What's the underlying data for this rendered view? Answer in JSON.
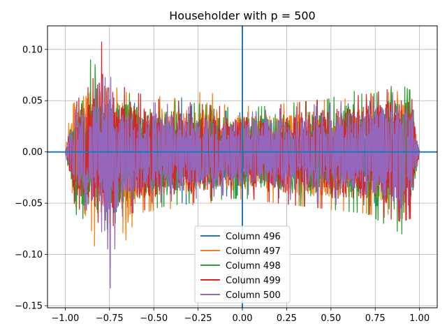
{
  "chart_data": {
    "type": "line",
    "title": "Householder with p = 500",
    "xlabel": "",
    "ylabel": "",
    "xlim": [
      -1.1,
      1.1
    ],
    "ylim": [
      -0.152,
      0.123
    ],
    "grid": true,
    "legend_position": "lower center",
    "xticks": [
      -1.0,
      -0.75,
      -0.5,
      -0.25,
      0.0,
      0.25,
      0.5,
      0.75,
      1.0
    ],
    "xtick_labels": [
      "−1.00",
      "−0.75",
      "−0.50",
      "−0.25",
      "0.00",
      "0.25",
      "0.50",
      "0.75",
      "1.00"
    ],
    "yticks": [
      -0.15,
      -0.1,
      -0.05,
      0.0,
      0.05,
      0.1
    ],
    "ytick_labels": [
      "−0.15",
      "−0.10",
      "−0.05",
      "0.00",
      "0.05",
      "0.10"
    ],
    "reference_lines": [
      {
        "orientation": "horizontal",
        "value": 0.0,
        "color": "#1f77b4"
      },
      {
        "orientation": "vertical",
        "value": 0.0,
        "color": "#1f77b4"
      }
    ],
    "series": [
      {
        "name": "Column 496",
        "color": "#1f77b4",
        "x": [
          -1.0,
          -0.95,
          -0.9,
          -0.85,
          -0.8,
          -0.75,
          -0.7,
          -0.65,
          -0.6,
          -0.5,
          -0.4,
          -0.3,
          -0.2,
          -0.1,
          0.0,
          0.1,
          0.2,
          0.3,
          0.4,
          0.5,
          0.6,
          0.7,
          0.75,
          0.8,
          0.85,
          0.9,
          0.95,
          1.0
        ],
        "envelope_upper": [
          0.0,
          0.034,
          0.047,
          0.05,
          0.053,
          0.055,
          0.052,
          0.05,
          0.047,
          0.045,
          0.042,
          0.061,
          0.043,
          0.04,
          0.038,
          0.04,
          0.042,
          0.043,
          0.044,
          0.046,
          0.047,
          0.049,
          0.05,
          0.048,
          0.05,
          0.053,
          0.05,
          0.0
        ],
        "envelope_lower": [
          0.0,
          -0.045,
          -0.05,
          -0.052,
          -0.055,
          -0.06,
          -0.058,
          -0.054,
          -0.05,
          -0.048,
          -0.046,
          -0.052,
          -0.045,
          -0.043,
          -0.042,
          -0.043,
          -0.045,
          -0.046,
          -0.047,
          -0.048,
          -0.05,
          -0.052,
          -0.053,
          -0.05,
          -0.052,
          -0.055,
          -0.05,
          0.0
        ]
      },
      {
        "name": "Column 497",
        "color": "#ff7f0e",
        "x": [
          -1.0,
          -0.95,
          -0.9,
          -0.85,
          -0.8,
          -0.75,
          -0.7,
          -0.65,
          -0.6,
          -0.5,
          -0.4,
          -0.3,
          -0.2,
          -0.1,
          0.0,
          0.1,
          0.2,
          0.3,
          0.4,
          0.5,
          0.6,
          0.7,
          0.75,
          0.8,
          0.85,
          0.9,
          0.95,
          1.0
        ],
        "envelope_upper": [
          0.0,
          0.07,
          0.07,
          0.075,
          0.103,
          0.065,
          0.062,
          0.058,
          0.056,
          0.055,
          0.052,
          0.052,
          0.062,
          0.046,
          0.044,
          0.046,
          0.047,
          0.048,
          0.05,
          0.051,
          0.052,
          0.054,
          0.055,
          0.056,
          0.06,
          0.058,
          0.055,
          0.0
        ],
        "envelope_lower": [
          0.0,
          -0.07,
          -0.075,
          -0.097,
          -0.08,
          -0.07,
          -0.068,
          -0.089,
          -0.06,
          -0.057,
          -0.055,
          -0.052,
          -0.05,
          -0.048,
          -0.046,
          -0.048,
          -0.05,
          -0.052,
          -0.054,
          -0.056,
          -0.058,
          -0.06,
          -0.062,
          -0.06,
          -0.062,
          -0.065,
          -0.06,
          0.0
        ]
      },
      {
        "name": "Column 498",
        "color": "#2ca02c",
        "x": [
          -1.0,
          -0.95,
          -0.9,
          -0.85,
          -0.8,
          -0.75,
          -0.7,
          -0.65,
          -0.6,
          -0.5,
          -0.4,
          -0.3,
          -0.2,
          -0.1,
          0.0,
          0.1,
          0.2,
          0.3,
          0.4,
          0.5,
          0.6,
          0.7,
          0.75,
          0.8,
          0.85,
          0.9,
          0.95,
          1.0
        ],
        "envelope_upper": [
          0.0,
          0.05,
          0.065,
          0.094,
          0.07,
          0.065,
          0.06,
          0.058,
          0.055,
          0.052,
          0.05,
          0.048,
          0.046,
          0.044,
          0.042,
          0.044,
          0.046,
          0.048,
          0.05,
          0.052,
          0.061,
          0.055,
          0.057,
          0.06,
          0.065,
          0.065,
          0.06,
          0.0
        ],
        "envelope_lower": [
          0.0,
          -0.06,
          -0.065,
          -0.07,
          -0.085,
          -0.072,
          -0.068,
          -0.062,
          -0.058,
          -0.055,
          -0.052,
          -0.05,
          -0.048,
          -0.046,
          -0.045,
          -0.047,
          -0.05,
          -0.052,
          -0.054,
          -0.056,
          -0.058,
          -0.06,
          -0.065,
          -0.07,
          -0.075,
          -0.08,
          -0.07,
          0.0
        ]
      },
      {
        "name": "Column 499",
        "color": "#d62728",
        "x": [
          -1.0,
          -0.95,
          -0.9,
          -0.85,
          -0.8,
          -0.75,
          -0.7,
          -0.65,
          -0.6,
          -0.5,
          -0.4,
          -0.3,
          -0.2,
          -0.1,
          0.0,
          0.1,
          0.2,
          0.3,
          0.4,
          0.5,
          0.6,
          0.7,
          0.75,
          0.8,
          0.85,
          0.9,
          0.95,
          1.0
        ],
        "envelope_upper": [
          0.0,
          0.044,
          0.06,
          0.065,
          0.111,
          0.078,
          0.065,
          0.062,
          0.058,
          0.052,
          0.05,
          0.048,
          0.046,
          0.044,
          0.042,
          0.044,
          0.046,
          0.048,
          0.05,
          0.052,
          0.054,
          0.056,
          0.058,
          0.06,
          0.062,
          0.064,
          0.06,
          0.0
        ],
        "envelope_lower": [
          0.0,
          -0.05,
          -0.06,
          -0.065,
          -0.07,
          -0.075,
          -0.068,
          -0.062,
          -0.058,
          -0.055,
          -0.052,
          -0.05,
          -0.048,
          -0.046,
          -0.045,
          -0.047,
          -0.05,
          -0.052,
          -0.054,
          -0.056,
          -0.058,
          -0.06,
          -0.062,
          -0.064,
          -0.066,
          -0.068,
          -0.065,
          0.0
        ]
      },
      {
        "name": "Column 500",
        "color": "#9467bd",
        "x": [
          -1.0,
          -0.95,
          -0.9,
          -0.85,
          -0.8,
          -0.75,
          -0.7,
          -0.65,
          -0.6,
          -0.5,
          -0.4,
          -0.3,
          -0.2,
          -0.1,
          0.0,
          0.1,
          0.2,
          0.3,
          0.4,
          0.5,
          0.6,
          0.7,
          0.75,
          0.8,
          0.85,
          0.9,
          0.95,
          1.0
        ],
        "envelope_upper": [
          0.0,
          0.04,
          0.05,
          0.055,
          0.07,
          0.075,
          0.06,
          0.055,
          0.05,
          0.048,
          0.046,
          0.044,
          0.042,
          0.04,
          0.038,
          0.04,
          0.042,
          0.044,
          0.046,
          0.048,
          0.05,
          0.052,
          0.054,
          0.056,
          0.058,
          0.06,
          0.055,
          0.0
        ],
        "envelope_lower": [
          0.0,
          -0.045,
          -0.055,
          -0.06,
          -0.07,
          -0.139,
          -0.065,
          -0.06,
          -0.055,
          -0.05,
          -0.048,
          -0.046,
          -0.044,
          -0.042,
          -0.041,
          -0.043,
          -0.045,
          -0.047,
          -0.049,
          -0.051,
          -0.053,
          -0.055,
          -0.057,
          -0.06,
          -0.07,
          -0.099,
          -0.06,
          0.0
        ]
      }
    ]
  }
}
